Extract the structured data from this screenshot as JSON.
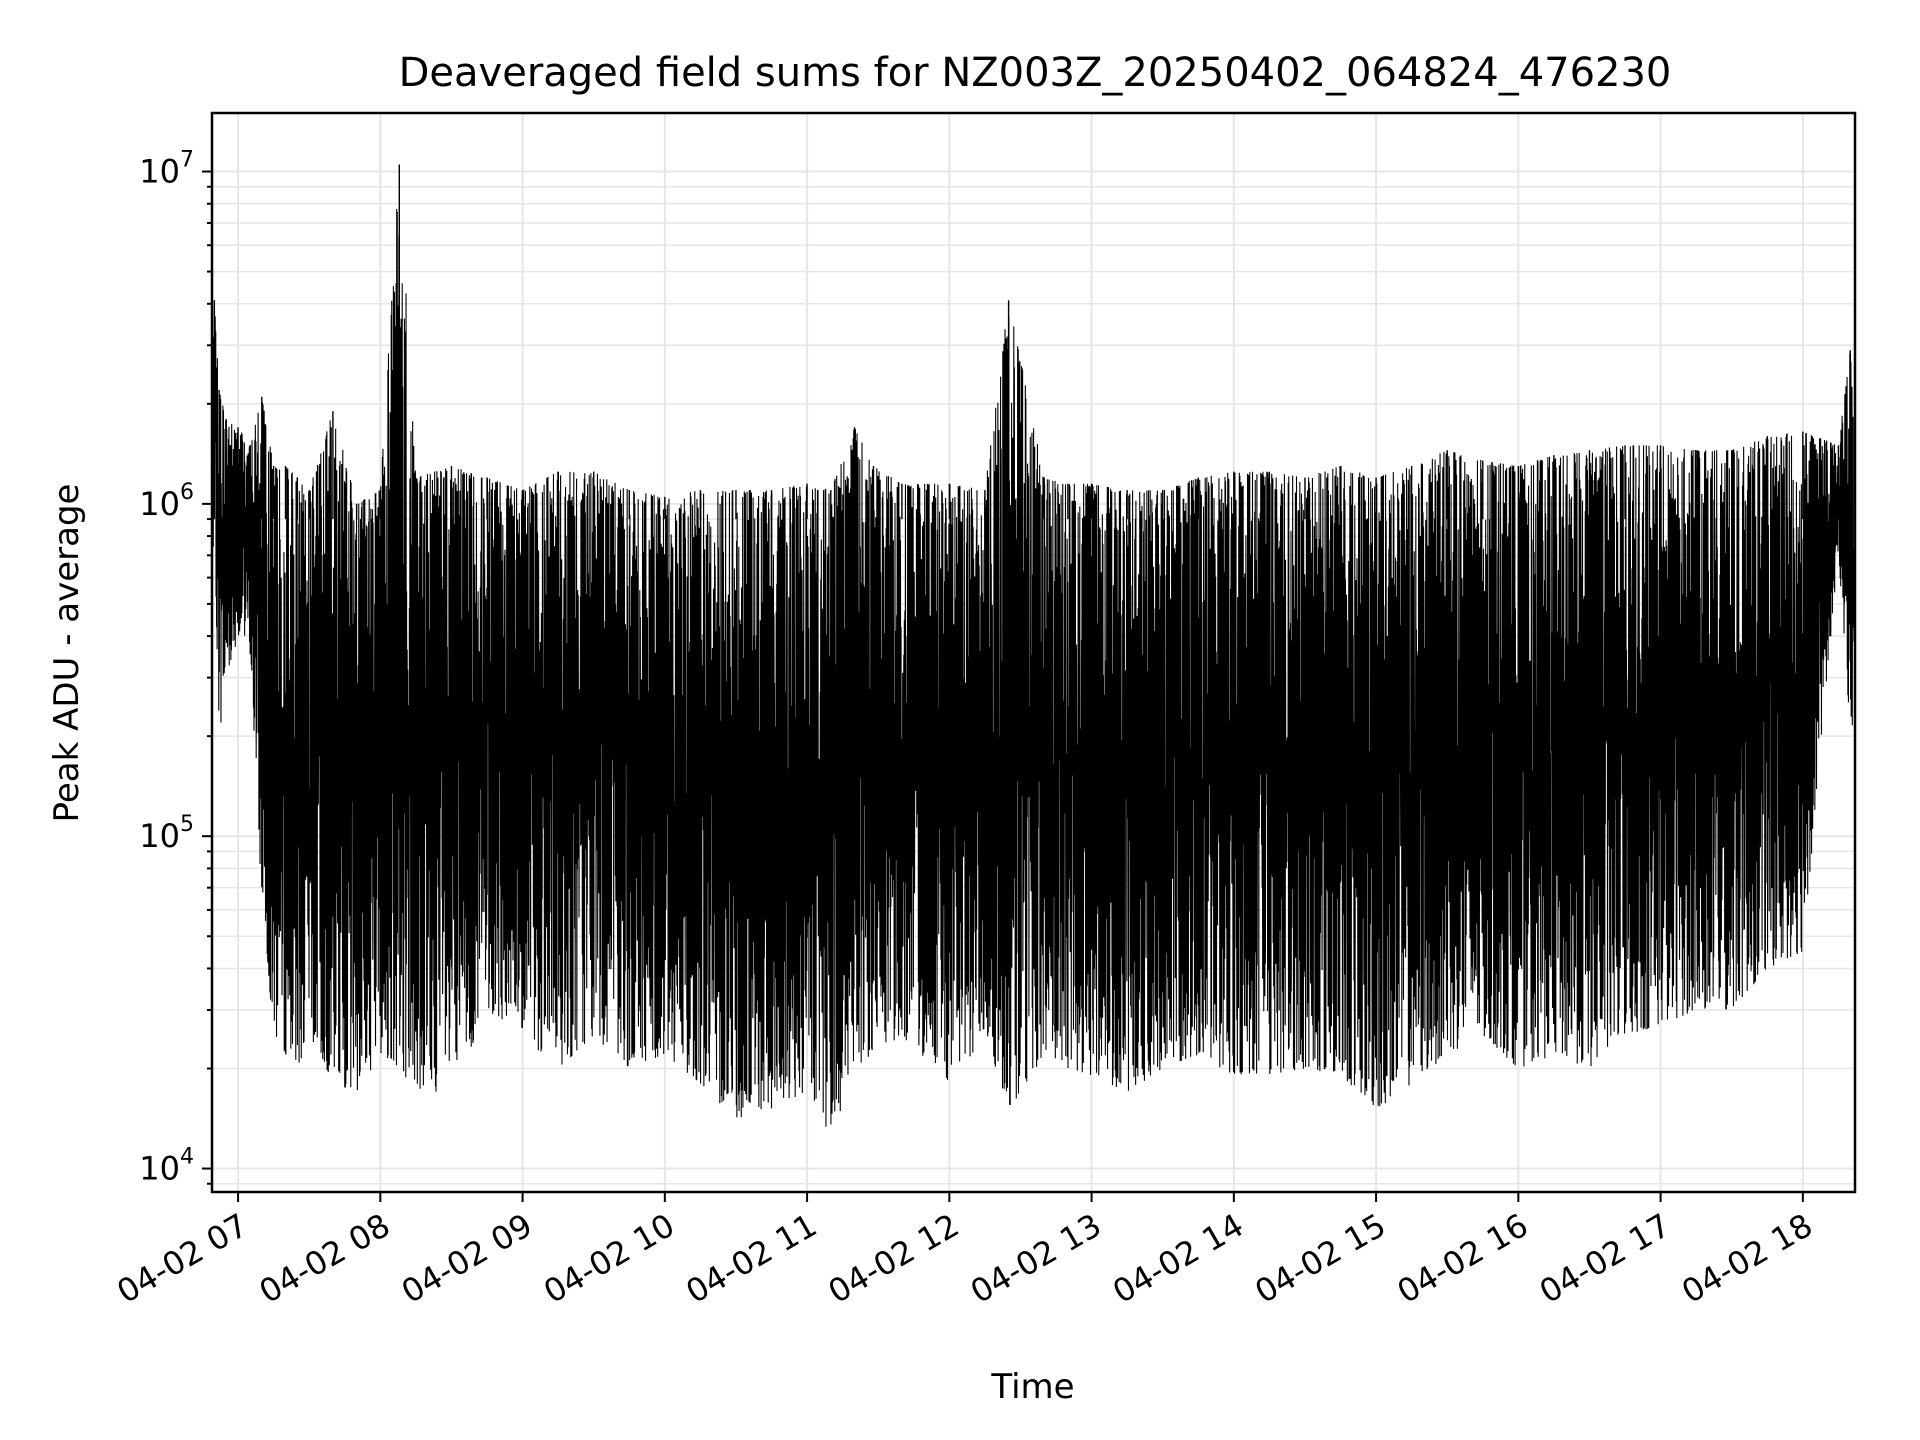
{
  "chart_data": {
    "type": "line",
    "title": "Deaveraged field sums for NZ003Z_20250402_064824_476230",
    "xlabel": "Time",
    "ylabel": "Peak ADU - average",
    "yscale": "log",
    "ylim": [
      8500,
      15000000
    ],
    "xlim": [
      "04-02 06:49",
      "04-02 18:22"
    ],
    "grid": true,
    "line_color": "#000000",
    "x_ticks": [
      "04-02 07",
      "04-02 08",
      "04-02 09",
      "04-02 10",
      "04-02 11",
      "04-02 12",
      "04-02 13",
      "04-02 14",
      "04-02 15",
      "04-02 16",
      "04-02 17",
      "04-02 18"
    ],
    "y_ticks": [
      {
        "value": 10000,
        "base": "10",
        "exp": "4"
      },
      {
        "value": 100000,
        "base": "10",
        "exp": "5"
      },
      {
        "value": 1000000,
        "base": "10",
        "exp": "6"
      },
      {
        "value": 10000000,
        "base": "10",
        "exp": "7"
      }
    ],
    "series": [
      {
        "x": [
          "04-02 06:49",
          "04-02 06:50",
          "04-02 06:52",
          "04-02 06:55",
          "04-02 07:00",
          "04-02 07:05",
          "04-02 07:10",
          "04-02 07:15",
          "04-02 07:20",
          "04-02 07:25",
          "04-02 07:30",
          "04-02 07:40",
          "04-02 07:50",
          "04-02 08:00",
          "04-02 08:08",
          "04-02 08:15",
          "04-02 08:30",
          "04-02 08:45",
          "04-02 09:00",
          "04-02 09:15",
          "04-02 09:30",
          "04-02 09:45",
          "04-02 10:00",
          "04-02 10:15",
          "04-02 10:30",
          "04-02 10:45",
          "04-02 11:00",
          "04-02 11:10",
          "04-02 11:20",
          "04-02 11:28",
          "04-02 11:40",
          "04-02 12:00",
          "04-02 12:15",
          "04-02 12:25",
          "04-02 12:40",
          "04-02 12:50",
          "04-02 13:00",
          "04-02 13:15",
          "04-02 13:30",
          "04-02 13:45",
          "04-02 14:00",
          "04-02 14:15",
          "04-02 14:30",
          "04-02 14:45",
          "04-02 15:00",
          "04-02 15:15",
          "04-02 15:30",
          "04-02 15:45",
          "04-02 16:00",
          "04-02 16:15",
          "04-02 16:30",
          "04-02 16:45",
          "04-02 17:00",
          "04-02 17:15",
          "04-02 17:30",
          "04-02 17:45",
          "04-02 18:00",
          "04-02 18:10",
          "04-02 18:15",
          "04-02 18:20",
          "04-02 18:22"
        ],
        "max": [
          4200000,
          4100000,
          2200000,
          1800000,
          1700000,
          1500000,
          2100000,
          1300000,
          1300000,
          1200000,
          1100000,
          1900000,
          1000000,
          1100000,
          10500000,
          1200000,
          1300000,
          1200000,
          1100000,
          1250000,
          1250000,
          1100000,
          1050000,
          1100000,
          1100000,
          1100000,
          1150000,
          1100000,
          1700000,
          1300000,
          1150000,
          1150000,
          1100000,
          4100000,
          1200000,
          1150000,
          1150000,
          1100000,
          1100000,
          1200000,
          1250000,
          1250000,
          1200000,
          1300000,
          1200000,
          1300000,
          1450000,
          1350000,
          1300000,
          1400000,
          1450000,
          1500000,
          1500000,
          1450000,
          1450000,
          1600000,
          1650000,
          1550000,
          1500000,
          2900000,
          1600000
        ],
        "min": [
          600000,
          700000,
          200000,
          300000,
          400000,
          350000,
          60000,
          25000,
          22000,
          20000,
          25000,
          18000,
          17000,
          22000,
          20000,
          17000,
          17000,
          30000,
          25000,
          20000,
          25000,
          20000,
          22000,
          18000,
          14000,
          15000,
          17000,
          12000,
          20000,
          22000,
          25000,
          18000,
          25000,
          15000,
          22000,
          20000,
          19000,
          17000,
          20000,
          22000,
          19000,
          19000,
          20000,
          19000,
          15000,
          18000,
          22000,
          25000,
          20000,
          22000,
          20000,
          25000,
          27000,
          30000,
          30000,
          40000,
          45000,
          300000,
          700000,
          200000,
          180000
        ]
      }
    ]
  }
}
